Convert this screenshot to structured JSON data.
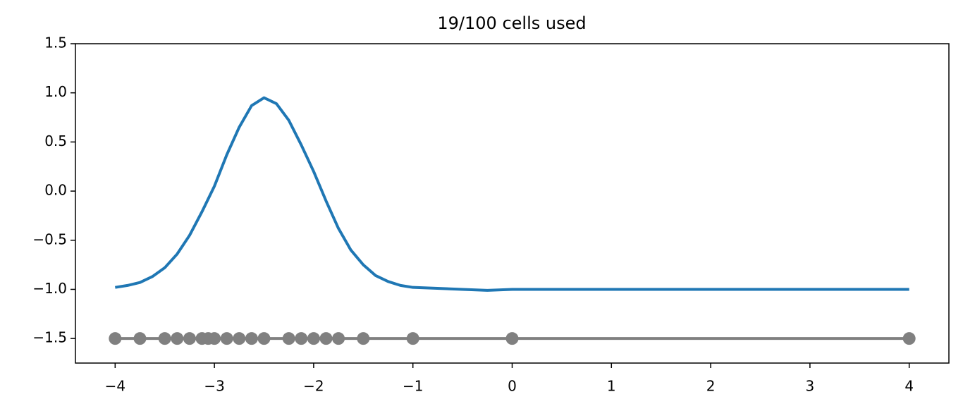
{
  "chart_data": {
    "type": "line",
    "title": "19/100 cells used",
    "xlim": [
      -4.4,
      4.4
    ],
    "ylim": [
      -1.75,
      1.5
    ],
    "xticks": [
      {
        "value": -4,
        "label": "−4"
      },
      {
        "value": -3,
        "label": "−3"
      },
      {
        "value": -2,
        "label": "−2"
      },
      {
        "value": -1,
        "label": "−1"
      },
      0,
      1,
      2,
      3,
      4
    ],
    "yticks": [
      {
        "value": -1.5,
        "label": "−1.5"
      },
      {
        "value": -1.0,
        "label": "−1.0"
      },
      {
        "value": -0.5,
        "label": "−0.5"
      },
      {
        "value": 0,
        "label": "0.0"
      },
      0.5,
      {
        "value": 1.0,
        "label": "1.0"
      },
      1.5
    ],
    "series": [
      {
        "color": "#1f77b4",
        "marker": false,
        "x": [
          -4,
          -3.875,
          -3.75,
          -3.625,
          -3.5,
          -3.375,
          -3.25,
          -3.125,
          -3,
          -2.875,
          -2.75,
          -2.625,
          -2.5,
          -2.375,
          -2.25,
          -2.125,
          -2,
          -1.875,
          -1.75,
          -1.625,
          -1.5,
          -1.375,
          -1.25,
          -1.125,
          -1,
          -0.5,
          -0.25,
          0,
          4
        ],
        "values": [
          -0.98,
          -0.96,
          -0.93,
          -0.87,
          -0.78,
          -0.64,
          -0.45,
          -0.21,
          0.05,
          0.37,
          0.65,
          0.87,
          0.95,
          0.89,
          0.72,
          0.47,
          0.2,
          -0.1,
          -0.38,
          -0.6,
          -0.75,
          -0.86,
          -0.92,
          -0.96,
          -0.98,
          -1.0,
          -1.01,
          -1.0,
          -1.0
        ]
      },
      {
        "color": "#808080",
        "marker": true,
        "x": [
          -4,
          -3.75,
          -3.5,
          -3.375,
          -3.25,
          -3.125,
          -3.0625,
          -3,
          -2.875,
          -2.75,
          -2.625,
          -2.5,
          -2.25,
          -2.125,
          -2,
          -1.875,
          -1.75,
          -1.5,
          -1,
          0,
          4
        ],
        "values": [
          -1.5,
          -1.5,
          -1.5,
          -1.5,
          -1.5,
          -1.5,
          -1.5,
          -1.5,
          -1.5,
          -1.5,
          -1.5,
          -1.5,
          -1.5,
          -1.5,
          -1.5,
          -1.5,
          -1.5,
          -1.5,
          -1.5,
          -1.5,
          -1.5
        ]
      }
    ]
  }
}
